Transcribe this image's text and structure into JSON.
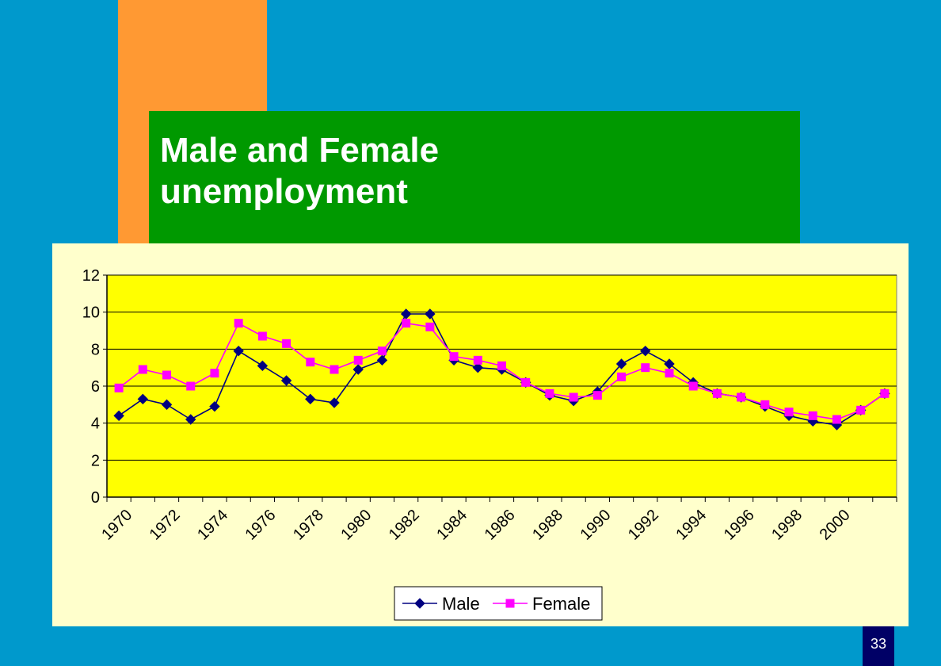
{
  "slide": {
    "title": "Male and Female unemployment",
    "page_number": "33",
    "colors": {
      "background": "#0099cc",
      "accent_orange": "#ff9933",
      "title_box": "#009900",
      "chart_panel": "#ffffcc",
      "plot_area": "#ffff00",
      "male_series": "#000080",
      "female_series": "#ff00ff",
      "page_badge": "#000066"
    }
  },
  "chart_data": {
    "type": "line",
    "title": "",
    "xlabel": "",
    "ylabel": "",
    "ylim": [
      0,
      12
    ],
    "yticks": [
      "0",
      "2",
      "4",
      "6",
      "8",
      "10",
      "12"
    ],
    "x": [
      1970,
      1971,
      1972,
      1973,
      1974,
      1975,
      1976,
      1977,
      1978,
      1979,
      1980,
      1981,
      1982,
      1983,
      1984,
      1985,
      1986,
      1987,
      1988,
      1989,
      1990,
      1991,
      1992,
      1993,
      1994,
      1995,
      1996,
      1997,
      1998,
      1999,
      2000,
      2001,
      2002
    ],
    "xtick_labels": [
      "1970",
      "1972",
      "1974",
      "1976",
      "1978",
      "1980",
      "1982",
      "1984",
      "1986",
      "1988",
      "1990",
      "1992",
      "1994",
      "1996",
      "1998",
      "2000"
    ],
    "grid": "horizontal",
    "legend_position": "bottom",
    "series": [
      {
        "name": "Male",
        "marker": "diamond",
        "color": "#000080",
        "values": [
          4.4,
          5.3,
          5.0,
          4.2,
          4.9,
          7.9,
          7.1,
          6.3,
          5.3,
          5.1,
          6.9,
          7.4,
          9.9,
          9.9,
          7.4,
          7.0,
          6.9,
          6.2,
          5.5,
          5.2,
          5.7,
          7.2,
          7.9,
          7.2,
          6.2,
          5.6,
          5.4,
          4.9,
          4.4,
          4.1,
          3.9,
          4.7,
          5.6
        ]
      },
      {
        "name": "Female",
        "marker": "square",
        "color": "#ff00ff",
        "values": [
          5.9,
          6.9,
          6.6,
          6.0,
          6.7,
          9.4,
          8.7,
          8.3,
          7.3,
          6.9,
          7.4,
          7.9,
          9.4,
          9.2,
          7.6,
          7.4,
          7.1,
          6.2,
          5.6,
          5.4,
          5.5,
          6.5,
          7.0,
          6.7,
          6.0,
          5.6,
          5.4,
          5.0,
          4.6,
          4.4,
          4.2,
          4.7,
          5.6
        ]
      }
    ]
  }
}
